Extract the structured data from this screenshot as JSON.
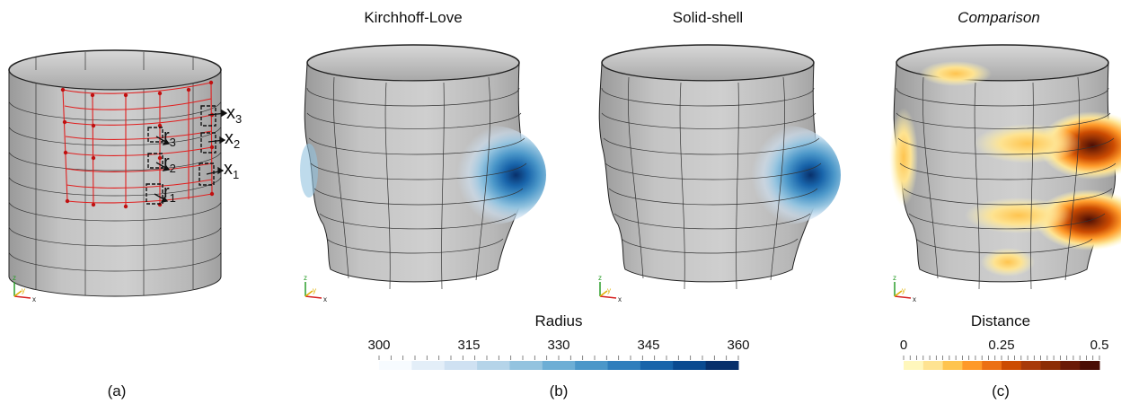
{
  "panels": {
    "kirchhoff_title": "Kirchhoff-Love",
    "solidshell_title": "Solid-shell",
    "comparison_title": "Comparison"
  },
  "captions": {
    "a": "(a)",
    "b": "(b)",
    "c": "(c)"
  },
  "labels_a": {
    "x3_base": "x",
    "x3_sub": "3",
    "x2_base": "x",
    "x2_sub": "2",
    "x1_base": "x",
    "x1_sub": "1",
    "r3_base": "r",
    "r3_sub": "3",
    "r2_base": "r",
    "r2_sub": "2",
    "r1_base": "r",
    "r1_sub": "1"
  },
  "axes_triad": {
    "z": "z",
    "y": "y",
    "x": "x"
  },
  "colorbar_radius": {
    "title": "Radius",
    "ticks": [
      "300",
      "315",
      "330",
      "345",
      "360"
    ],
    "min": 300,
    "max": 360,
    "colors": [
      "#f7fbff",
      "#e3eef8",
      "#cfe1f2",
      "#b5d4e9",
      "#93c3df",
      "#6daed5",
      "#4b97c9",
      "#2f7ebc",
      "#1864aa",
      "#0a4a90",
      "#08306b"
    ]
  },
  "colorbar_distance": {
    "title": "Distance",
    "ticks": [
      "0",
      "0.25",
      "0.5"
    ],
    "min": 0,
    "max": 0.5,
    "colors": [
      "#fff7bc",
      "#fee391",
      "#fec44f",
      "#fe9929",
      "#ec7014",
      "#cc4c02",
      "#a83a0a",
      "#8c2d04",
      "#6b1a07",
      "#4a0d05"
    ]
  }
}
